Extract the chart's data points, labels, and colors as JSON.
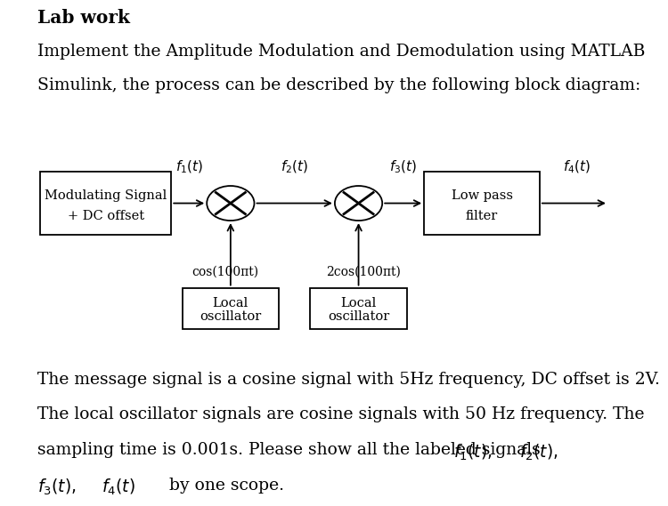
{
  "title": "Lab work",
  "line1": "Implement the Amplitude Modulation and Demodulation using MATLAB",
  "line2": "Simulink, the process can be described by the following block diagram:",
  "line3": "The message signal is a cosine signal with 5Hz frequency, DC offset is 2V.",
  "line4": "The local oscillator signals are cosine signals with 50 Hz frequency. The",
  "line5_prefix": "sampling time is 0.001s. Please show all the labeled signals  ",
  "line5_math": [
    "f_1(t),",
    "f_2(t),"
  ],
  "line6_math": [
    "f_3(t),",
    "f_4(t)"
  ],
  "line6_suffix": "  by one scope.",
  "bg_color": "#ffffff",
  "box1_label_line1": "Modulating Signal",
  "box1_label_line2": "+ DC offset",
  "box2_label_line1": "Low pass",
  "box2_label_line2": "filter",
  "osc_label_line1": "Local",
  "osc_label_line2": "oscillator",
  "osc1_signal": "cos(100πt)",
  "osc2_signal": "2cos(100πt)",
  "text_fontsize": 13.5,
  "title_fontsize": 14.5,
  "diagram_fontsize": 10.5
}
